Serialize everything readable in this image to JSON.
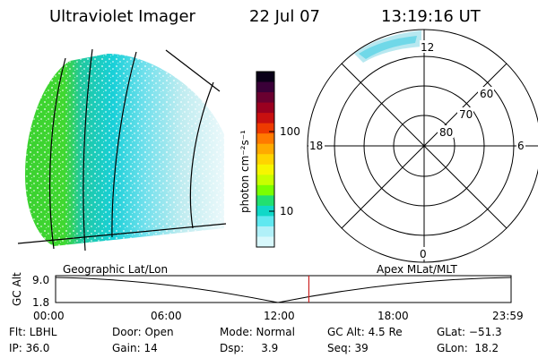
{
  "header": {
    "title": "Ultraviolet Imager",
    "date": "22 Jul 07",
    "time": "13:19:16 UT"
  },
  "colorbar": {
    "unit_label": "photon cm⁻²s⁻¹",
    "ticks": [
      "100",
      "10"
    ],
    "colors": [
      "#0a0018",
      "#3a0038",
      "#6a0030",
      "#9a0020",
      "#c81010",
      "#ee3a00",
      "#ff7a00",
      "#ffaa00",
      "#ffd400",
      "#f6f600",
      "#c8ff00",
      "#7aff00",
      "#22e070",
      "#10d8c8",
      "#60e8f0",
      "#b0f0f8",
      "#d8f8fc"
    ]
  },
  "polar": {
    "labels": {
      "top": "12",
      "bottom": "0",
      "left": "18",
      "right": "6",
      "lat60": "60",
      "lat70": "70",
      "lat80": "80"
    }
  },
  "timeline": {
    "y_axis_label": "GC Alt",
    "y_ticks": [
      "9.0",
      "1.8"
    ],
    "left_label": "Geographic Lat/Lon",
    "right_label": "Apex MLat/MLT",
    "x_ticks": [
      "00:00",
      "06:00",
      "12:00",
      "18:00",
      "23:59"
    ],
    "current_time_fraction": 0.556
  },
  "info": {
    "flt": "Flt: LBHL",
    "door": "Door: Open",
    "mode": "Mode: Normal",
    "gc_alt": "GC Alt: 4.5 Re",
    "glat": "GLat: −51.3",
    "ip": "IP: 36.0",
    "gain": "Gain: 14",
    "dsp": "Dsp:     3.9",
    "seq": "Seq: 39",
    "glon": "GLon:  18.2"
  }
}
